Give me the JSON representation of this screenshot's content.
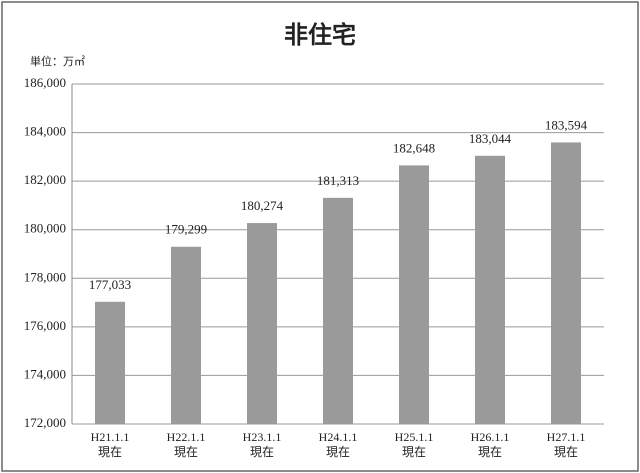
{
  "chart_data": {
    "type": "bar",
    "title": "非住宅",
    "unit_label": "単位：万㎡",
    "categories": [
      "H21.1.1\n現在",
      "H22.1.1\n現在",
      "H23.1.1\n現在",
      "H24.1.1\n現在",
      "H25.1.1\n現在",
      "H26.1.1\n現在",
      "H27.1.1\n現在"
    ],
    "values": [
      177033,
      179299,
      180274,
      181313,
      182648,
      183044,
      183594
    ],
    "value_labels": [
      "177,033",
      "179,299",
      "180,274",
      "181,313",
      "182,648",
      "183,044",
      "183,594"
    ],
    "color": "#9a9a9a",
    "ylim": [
      172000,
      186000
    ],
    "yticks": [
      {
        "value": 172000,
        "label": "172,000"
      },
      {
        "value": 174000,
        "label": "174,000"
      },
      {
        "value": 176000,
        "label": "176,000"
      },
      {
        "value": 178000,
        "label": "178,000"
      },
      {
        "value": 180000,
        "label": "180,000"
      },
      {
        "value": 182000,
        "label": "182,000"
      },
      {
        "value": 184000,
        "label": "184,000"
      },
      {
        "value": 186000,
        "label": "186,000"
      }
    ],
    "grid": true
  }
}
